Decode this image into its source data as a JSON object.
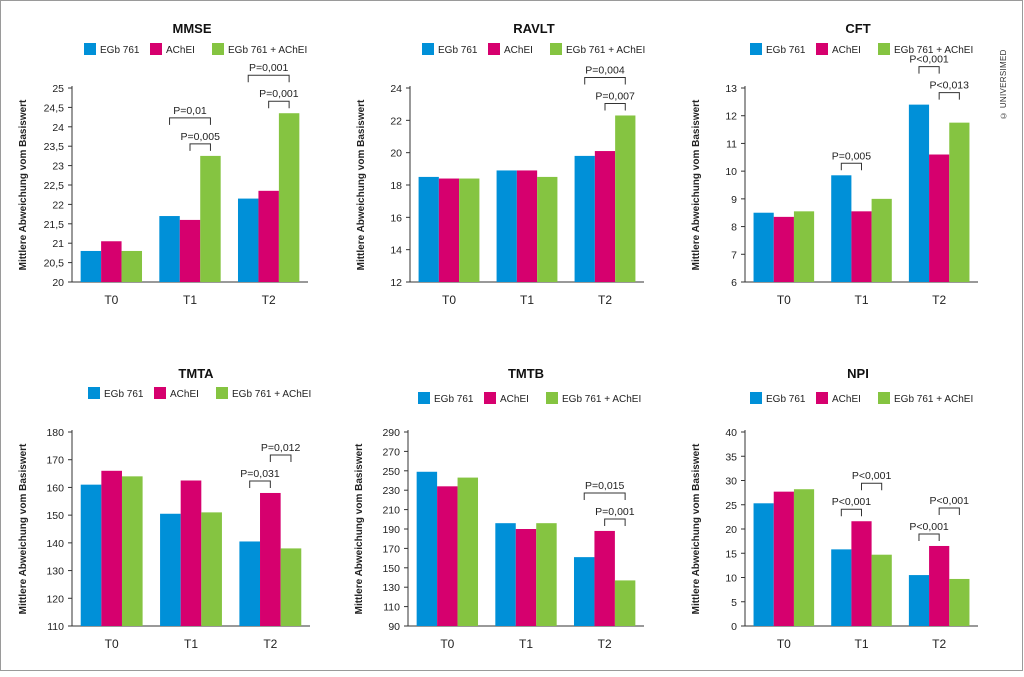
{
  "colors": {
    "egb": "#0090d8",
    "ache": "#d6006e",
    "combo": "#85c441"
  },
  "copyright": "© UNIVERSIMED",
  "chart_data": [
    {
      "type": "bar",
      "title": "MMSE",
      "ylabel": "Mittlere Abweichung vom Basiswert",
      "categories": [
        "T0",
        "T1",
        "T2"
      ],
      "ylim": [
        20,
        25
      ],
      "ticks": [
        "20",
        "20,5",
        "21",
        "21,5",
        "22",
        "22,5",
        "23",
        "23,5",
        "24",
        "24,5",
        "25"
      ],
      "legend_position": "top",
      "series": [
        {
          "name": "EGb 761",
          "values": [
            20.8,
            21.7,
            22.15
          ]
        },
        {
          "name": "AChEI",
          "values": [
            21.05,
            21.6,
            22.35
          ]
        },
        {
          "name": "EGb 761 + AChEI",
          "values": [
            20.8,
            23.25,
            24.35
          ]
        }
      ],
      "annotations": [
        {
          "label": "P=0,01",
          "category": 1,
          "from": 0,
          "to": 2,
          "level": 2
        },
        {
          "label": "P=0,005",
          "category": 1,
          "from": 1,
          "to": 2,
          "level": 1
        },
        {
          "label": "P=0,001",
          "category": 2,
          "from": 0,
          "to": 2,
          "level": 2
        },
        {
          "label": "P=0,001",
          "category": 2,
          "from": 1,
          "to": 2,
          "level": 1
        }
      ]
    },
    {
      "type": "bar",
      "title": "RAVLT",
      "ylabel": "Mittlere Abweichung vom Basiswert",
      "categories": [
        "T0",
        "T1",
        "T2"
      ],
      "ylim": [
        12,
        24
      ],
      "ticks": [
        "12",
        "14",
        "16",
        "18",
        "20",
        "22",
        "24"
      ],
      "legend_position": "top",
      "series": [
        {
          "name": "EGb 761",
          "values": [
            18.5,
            18.9,
            19.8
          ]
        },
        {
          "name": "AChEI",
          "values": [
            18.4,
            18.9,
            20.1
          ]
        },
        {
          "name": "EGb 761 + AChEI",
          "values": [
            18.4,
            18.5,
            22.3
          ]
        }
      ],
      "annotations": [
        {
          "label": "P=0,004",
          "category": 2,
          "from": 0,
          "to": 2,
          "level": 2
        },
        {
          "label": "P=0,007",
          "category": 2,
          "from": 1,
          "to": 2,
          "level": 1
        }
      ]
    },
    {
      "type": "bar",
      "title": "CFT",
      "ylabel": "Mittlere Abweichung vom Basiswert",
      "categories": [
        "T0",
        "T1",
        "T2"
      ],
      "ylim": [
        6,
        13
      ],
      "ticks": [
        "6",
        "7",
        "8",
        "9",
        "10",
        "11",
        "12",
        "13"
      ],
      "legend_position": "top",
      "series": [
        {
          "name": "EGb 761",
          "values": [
            8.5,
            9.85,
            12.4
          ]
        },
        {
          "name": "AChEI",
          "values": [
            8.35,
            8.55,
            10.6
          ]
        },
        {
          "name": "EGb 761 + AChEI",
          "values": [
            8.55,
            9.0,
            11.75
          ]
        }
      ],
      "annotations": [
        {
          "label": "P=0,005",
          "category": 1,
          "from": 0,
          "to": 1,
          "level": 1
        },
        {
          "label": "P<0,001",
          "category": 2,
          "from": 0,
          "to": 1,
          "level": 2
        },
        {
          "label": "P<0,013",
          "category": 2,
          "from": 1,
          "to": 2,
          "level": 1
        }
      ]
    },
    {
      "type": "bar",
      "title": "TMTA",
      "ylabel": "Mittlere Abweichung vom Basiswert",
      "categories": [
        "T0",
        "T1",
        "T2"
      ],
      "ylim": [
        110,
        180
      ],
      "ticks": [
        "110",
        "120",
        "130",
        "140",
        "150",
        "160",
        "170",
        "180"
      ],
      "legend_position": "top",
      "series": [
        {
          "name": "EGb 761",
          "values": [
            161,
            150.5,
            140.5
          ]
        },
        {
          "name": "AChEI",
          "values": [
            166,
            162.5,
            158
          ]
        },
        {
          "name": "EGb 761 + AChEI",
          "values": [
            164,
            151,
            138
          ]
        }
      ],
      "annotations": [
        {
          "label": "P=0,031",
          "category": 2,
          "from": 0,
          "to": 1,
          "level": 1
        },
        {
          "label": "P=0,012",
          "category": 2,
          "from": 1,
          "to": 2,
          "level": 2
        }
      ]
    },
    {
      "type": "bar",
      "title": "TMTB",
      "ylabel": "Mittlere Abweichung vom Basiswert",
      "categories": [
        "T0",
        "T1",
        "T2"
      ],
      "ylim": [
        90,
        290
      ],
      "ticks": [
        "90",
        "110",
        "130",
        "150",
        "170",
        "190",
        "210",
        "230",
        "250",
        "270",
        "290"
      ],
      "legend_position": "top",
      "series": [
        {
          "name": "EGb 761",
          "values": [
            249,
            196,
            161
          ]
        },
        {
          "name": "AChEI",
          "values": [
            234,
            190,
            188
          ]
        },
        {
          "name": "EGb 761 + AChEI",
          "values": [
            243,
            196,
            137
          ]
        }
      ],
      "annotations": [
        {
          "label": "P=0,015",
          "category": 2,
          "from": 0,
          "to": 2,
          "level": 2
        },
        {
          "label": "P=0,001",
          "category": 2,
          "from": 1,
          "to": 2,
          "level": 1
        }
      ]
    },
    {
      "type": "bar",
      "title": "NPI",
      "ylabel": "Mittlere Abweichung vom Basiswert",
      "categories": [
        "T0",
        "T1",
        "T2"
      ],
      "ylim": [
        0,
        40
      ],
      "ticks": [
        "0",
        "5",
        "10",
        "15",
        "20",
        "25",
        "30",
        "35",
        "40"
      ],
      "legend_position": "top",
      "series": [
        {
          "name": "EGb 761",
          "values": [
            25.3,
            15.8,
            10.5
          ]
        },
        {
          "name": "AChEI",
          "values": [
            27.7,
            21.6,
            16.5
          ]
        },
        {
          "name": "EGb 761 + AChEI",
          "values": [
            28.2,
            14.7,
            9.7
          ]
        }
      ],
      "annotations": [
        {
          "label": "P<0,001",
          "category": 1,
          "from": 0,
          "to": 1,
          "level": 1
        },
        {
          "label": "P<0,001",
          "category": 1,
          "from": 1,
          "to": 2,
          "level": 2
        },
        {
          "label": "P<0,001",
          "category": 2,
          "from": 0,
          "to": 1,
          "level": 1
        },
        {
          "label": "P<0,001",
          "category": 2,
          "from": 1,
          "to": 2,
          "level": 2
        }
      ]
    }
  ]
}
